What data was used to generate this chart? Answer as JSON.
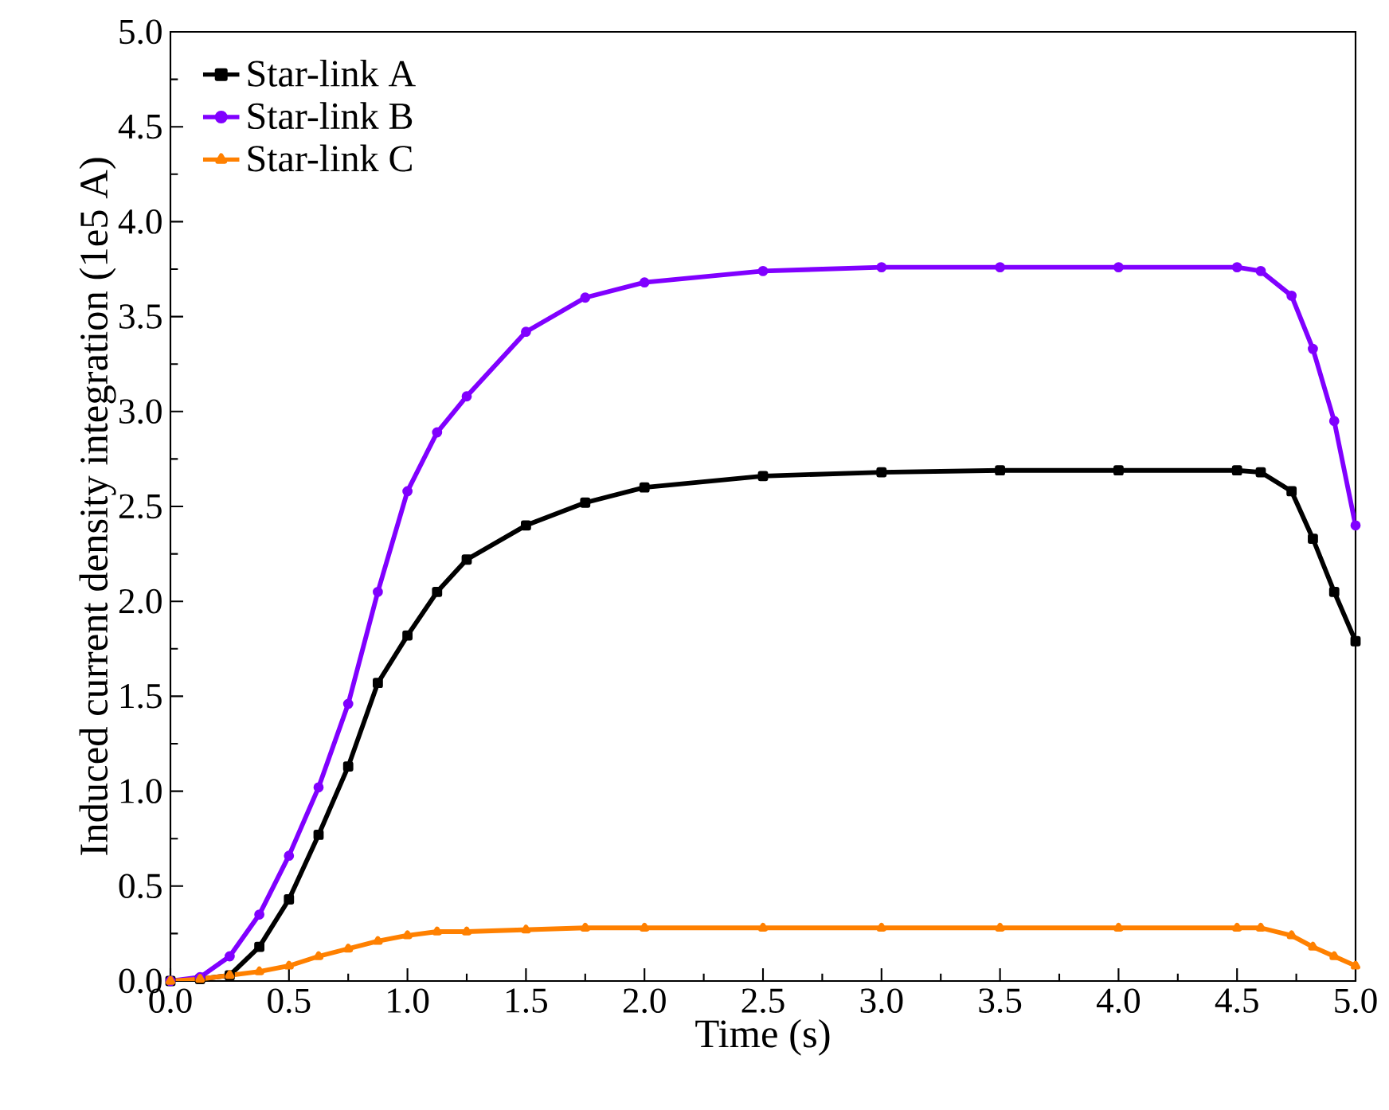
{
  "chart_data": {
    "type": "line",
    "xlabel": "Time (s)",
    "ylabel": "Induced current density integration (1e5 A)",
    "x": [
      0,
      0.125,
      0.25,
      0.375,
      0.5,
      0.625,
      0.75,
      0.875,
      1.0,
      1.125,
      1.25,
      1.5,
      1.75,
      2.0,
      2.5,
      3.0,
      3.5,
      4.0,
      4.5,
      4.6,
      4.73,
      4.82,
      4.91,
      5.0
    ],
    "series": [
      {
        "name": "Star-link A",
        "color": "#000000",
        "marker": "square",
        "values": [
          0,
          0.01,
          0.03,
          0.18,
          0.43,
          0.77,
          1.13,
          1.57,
          1.82,
          2.05,
          2.22,
          2.4,
          2.52,
          2.6,
          2.66,
          2.68,
          2.69,
          2.69,
          2.69,
          2.68,
          2.58,
          2.33,
          2.05,
          1.79
        ]
      },
      {
        "name": "Star-link B",
        "color": "#8000ff",
        "marker": "circle",
        "values": [
          0,
          0.02,
          0.13,
          0.35,
          0.66,
          1.02,
          1.46,
          2.05,
          2.58,
          2.89,
          3.08,
          3.42,
          3.6,
          3.68,
          3.74,
          3.76,
          3.76,
          3.76,
          3.76,
          3.74,
          3.61,
          3.33,
          2.95,
          2.4
        ]
      },
      {
        "name": "Star-link C",
        "color": "#ff8000",
        "marker": "triangle",
        "values": [
          0,
          0.01,
          0.03,
          0.05,
          0.08,
          0.13,
          0.17,
          0.21,
          0.24,
          0.26,
          0.26,
          0.27,
          0.28,
          0.28,
          0.28,
          0.28,
          0.28,
          0.28,
          0.28,
          0.28,
          0.24,
          0.18,
          0.13,
          0.08
        ]
      }
    ],
    "xlim": [
      0,
      5
    ],
    "ylim": [
      0,
      5
    ],
    "xticks": [
      {
        "value": 0,
        "label": "0.0"
      },
      {
        "value": 0.5,
        "label": "0.5"
      },
      {
        "value": 1,
        "label": "1.0"
      },
      {
        "value": 1.5,
        "label": "1.5"
      },
      {
        "value": 2,
        "label": "2.0"
      },
      {
        "value": 2.5,
        "label": "2.5"
      },
      {
        "value": 3,
        "label": "3.0"
      },
      {
        "value": 3.5,
        "label": "3.5"
      },
      {
        "value": 4,
        "label": "4.0"
      },
      {
        "value": 4.5,
        "label": "4.5"
      },
      {
        "value": 5,
        "label": "5.0"
      }
    ],
    "yticks": [
      {
        "value": 0,
        "label": "0.0"
      },
      {
        "value": 0.5,
        "label": "0.5"
      },
      {
        "value": 1,
        "label": "1.0"
      },
      {
        "value": 1.5,
        "label": "1.5"
      },
      {
        "value": 2,
        "label": "2.0"
      },
      {
        "value": 2.5,
        "label": "2.5"
      },
      {
        "value": 3,
        "label": "3.0"
      },
      {
        "value": 3.5,
        "label": "3.5"
      },
      {
        "value": 4,
        "label": "4.0"
      },
      {
        "value": 4.5,
        "label": "4.5"
      },
      {
        "value": 5,
        "label": "5.0"
      }
    ],
    "legend": "top left",
    "line_style": "solid"
  }
}
